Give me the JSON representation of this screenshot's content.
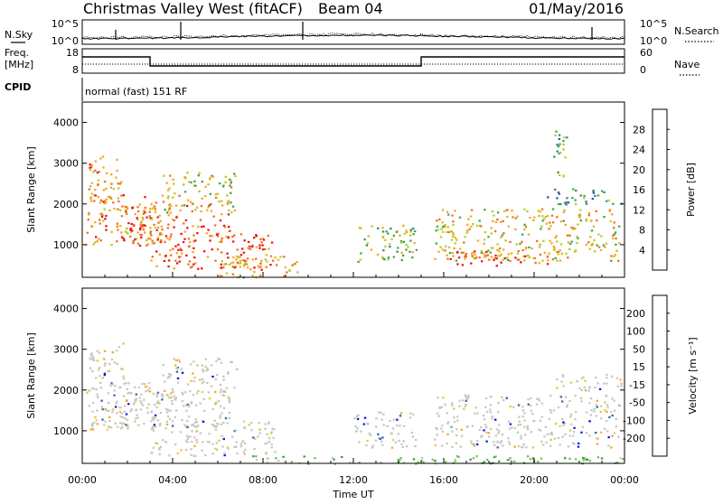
{
  "header": {
    "station": "Christmas Valley West (fitACF)",
    "beam": "Beam 04",
    "date": "01/May/2016"
  },
  "top_panels": {
    "nsky_label": "N.Sky",
    "nsearch_label": "N.Search",
    "noise_ticks_left": [
      "10^5",
      "10^0"
    ],
    "noise_ticks_right": [
      "10^5",
      "10^0"
    ],
    "freq_label": "Freq.",
    "freq_unit": "[MHz]",
    "freq_ticks": [
      "18",
      "8"
    ],
    "nave_label": "Nave",
    "nave_ticks": [
      "60",
      "0"
    ],
    "cpid_label": "CPID",
    "cpid_value": "normal (fast) 151 RF"
  },
  "chart_data": [
    {
      "type": "heatmap",
      "name": "power",
      "ylabel": "Slant Range [km]",
      "yticks": [
        "1000",
        "2000",
        "3000",
        "4000"
      ],
      "ylim": [
        200,
        4500
      ],
      "xlim": [
        0,
        24
      ],
      "colorbar_label": "Power [dB]",
      "colorbar_ticks": [
        "4",
        "8",
        "12",
        "16",
        "20",
        "24",
        "28"
      ],
      "colorbar_colors": [
        "#0b17f0",
        "#2756b8",
        "#3c8a6e",
        "#3fa84a",
        "#b8cc28",
        "#f5a623",
        "#f07020",
        "#ee1111"
      ],
      "bands": [
        {
          "t0": 0.1,
          "t1": 3.5,
          "r0": 1000,
          "r1": 2200,
          "level": 0.8
        },
        {
          "t0": 0.2,
          "t1": 1.8,
          "r0": 2000,
          "r1": 3200,
          "level": 0.75
        },
        {
          "t0": 1.5,
          "t1": 6.5,
          "r0": 1100,
          "r1": 2000,
          "level": 0.85
        },
        {
          "t0": 3.0,
          "t1": 8.5,
          "r0": 400,
          "r1": 1300,
          "level": 0.9
        },
        {
          "t0": 3.5,
          "t1": 6.8,
          "r0": 1800,
          "r1": 2800,
          "level": 0.6
        },
        {
          "t0": 6.0,
          "t1": 9.5,
          "r0": 200,
          "r1": 800,
          "level": 0.7
        },
        {
          "t0": 12.0,
          "t1": 14.8,
          "r0": 600,
          "r1": 1500,
          "level": 0.5
        },
        {
          "t0": 15.5,
          "t1": 23.8,
          "r0": 600,
          "r1": 1900,
          "level": 0.65
        },
        {
          "t0": 16.0,
          "t1": 21.0,
          "r0": 500,
          "r1": 900,
          "level": 0.9
        },
        {
          "t0": 20.5,
          "t1": 23.9,
          "r0": 2000,
          "r1": 2400,
          "level": 0.35
        },
        {
          "t0": 20.8,
          "t1": 21.5,
          "r0": 2700,
          "r1": 3900,
          "level": 0.4
        }
      ]
    },
    {
      "type": "heatmap",
      "name": "velocity",
      "ylabel": "Slant Range [km]",
      "yticks": [
        "1000",
        "2000",
        "3000",
        "4000"
      ],
      "ylim": [
        200,
        4500
      ],
      "xlim": [
        0,
        24
      ],
      "xticks": [
        "00:00",
        "04:00",
        "08:00",
        "12:00",
        "16:00",
        "20:00",
        "00:00"
      ],
      "xlabel": "Time UT",
      "colorbar_label": "Velocity [m s⁻¹]",
      "colorbar_ticks": [
        "-200",
        "-100",
        "-50",
        "-15",
        "15",
        "50",
        "100",
        "200"
      ],
      "colorbar_colors": [
        "#ee1111",
        "#f07020",
        "#f5a623",
        "#f2c230",
        "#c8c8bc",
        "#6ec84a",
        "#3a9a4a",
        "#2a6eb0",
        "#0b17f0"
      ],
      "bands": [
        {
          "t0": 0.1,
          "t1": 3.5,
          "r0": 1000,
          "r1": 2200,
          "level": 0.5
        },
        {
          "t0": 0.2,
          "t1": 1.8,
          "r0": 2000,
          "r1": 3200,
          "level": 0.5
        },
        {
          "t0": 1.5,
          "t1": 6.5,
          "r0": 1100,
          "r1": 2000,
          "level": 0.5
        },
        {
          "t0": 3.0,
          "t1": 8.5,
          "r0": 400,
          "r1": 1300,
          "level": 0.5
        },
        {
          "t0": 3.5,
          "t1": 6.8,
          "r0": 1800,
          "r1": 2800,
          "level": 0.5
        },
        {
          "t0": 12.0,
          "t1": 14.8,
          "r0": 600,
          "r1": 1500,
          "level": 0.5
        },
        {
          "t0": 15.5,
          "t1": 23.8,
          "r0": 600,
          "r1": 1900,
          "level": 0.5
        },
        {
          "t0": 20.5,
          "t1": 23.9,
          "r0": 2000,
          "r1": 2400,
          "level": 0.5
        },
        {
          "t0": 7.5,
          "t1": 23.9,
          "r0": 200,
          "r1": 400,
          "level": 0.62
        }
      ]
    }
  ]
}
